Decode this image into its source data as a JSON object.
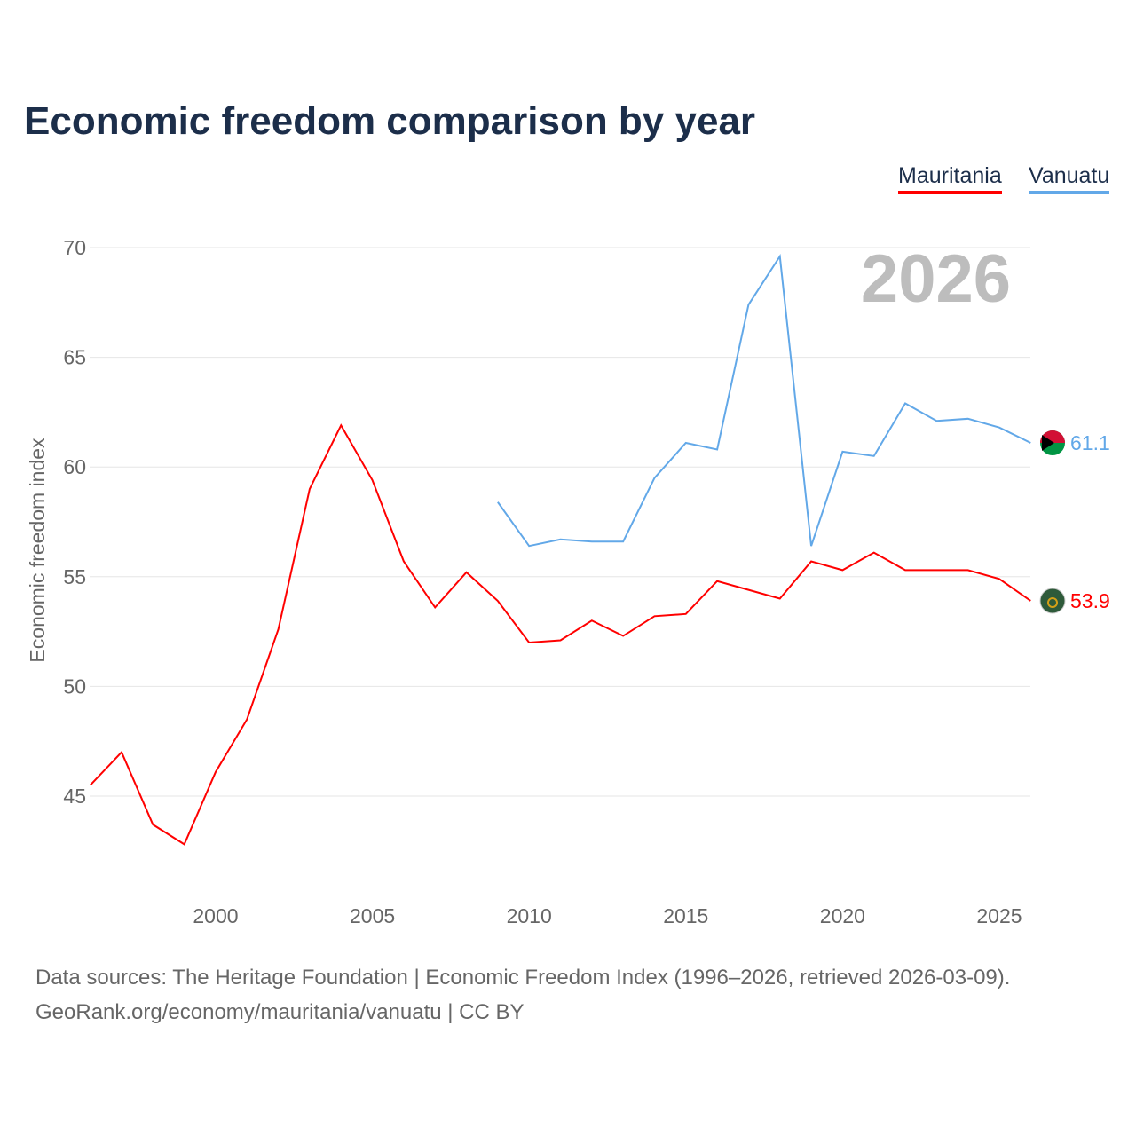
{
  "title": "Economic freedom comparison by year",
  "year_watermark": "2026",
  "footer": {
    "line1": "Data sources: The Heritage Foundation | Economic Freedom Index (1996–2026, retrieved 2026-03-09).",
    "line2": "GeoRank.org/economy/mauritania/vanuatu | CC BY"
  },
  "chart_data": {
    "type": "line",
    "title": "Economic freedom comparison by year",
    "xlabel": "",
    "ylabel": "Economic freedom index",
    "xlim": [
      1996,
      2026
    ],
    "ylim": [
      40.5,
      71
    ],
    "xticks": [
      2000,
      2005,
      2010,
      2015,
      2020,
      2025
    ],
    "yticks": [
      45,
      50,
      55,
      60,
      65,
      70
    ],
    "grid": true,
    "legend_position": "top-right",
    "series": [
      {
        "name": "Mauritania",
        "color": "#ff0000",
        "end_label": "53.9",
        "x": [
          1996,
          1997,
          1998,
          1999,
          2000,
          2001,
          2002,
          2003,
          2004,
          2005,
          2006,
          2007,
          2008,
          2009,
          2010,
          2011,
          2012,
          2013,
          2014,
          2015,
          2016,
          2017,
          2018,
          2019,
          2020,
          2021,
          2022,
          2023,
          2024,
          2025,
          2026
        ],
        "values": [
          45.5,
          47.0,
          43.7,
          42.8,
          46.1,
          48.5,
          52.6,
          59.0,
          61.9,
          59.4,
          55.7,
          53.6,
          55.2,
          53.9,
          52.0,
          52.1,
          53.0,
          52.3,
          53.2,
          53.3,
          54.8,
          54.4,
          54.0,
          55.7,
          55.3,
          56.1,
          55.3,
          55.3,
          55.3,
          54.9,
          53.9
        ]
      },
      {
        "name": "Vanuatu",
        "color": "#62a8e8",
        "end_label": "61.1",
        "x": [
          2009,
          2010,
          2011,
          2012,
          2013,
          2014,
          2015,
          2016,
          2017,
          2018,
          2019,
          2020,
          2021,
          2022,
          2023,
          2024,
          2025,
          2026
        ],
        "values": [
          58.4,
          56.4,
          56.7,
          56.6,
          56.6,
          59.5,
          61.1,
          60.8,
          67.4,
          69.6,
          56.4,
          60.7,
          60.5,
          62.9,
          62.1,
          62.2,
          61.8,
          61.1
        ]
      }
    ]
  }
}
